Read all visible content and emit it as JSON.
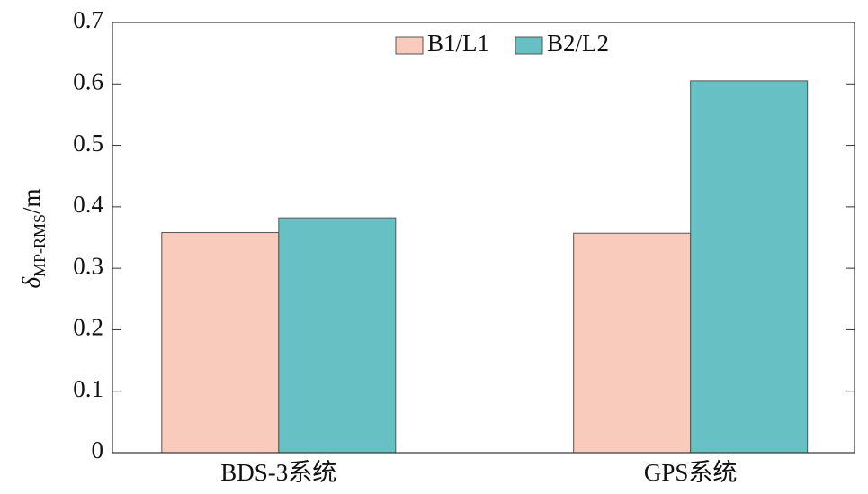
{
  "chart_data": {
    "type": "bar",
    "y_label": {
      "symbol": "δ",
      "subscript": "MP-RMS",
      "unit": "/m"
    },
    "categories": [
      "BDS-3系统",
      "GPS系统"
    ],
    "series": [
      {
        "name": "B1/L1",
        "color": "#f9cbbd",
        "values": [
          0.358,
          0.357
        ]
      },
      {
        "name": "B2/L2",
        "color": "#66c0c4",
        "values": [
          0.382,
          0.605
        ]
      }
    ],
    "ylim": [
      0,
      0.7
    ],
    "yticks": [
      0,
      0.1,
      0.2,
      0.3,
      0.4,
      0.5,
      0.6,
      0.7
    ],
    "grid": false,
    "legend": "north"
  }
}
